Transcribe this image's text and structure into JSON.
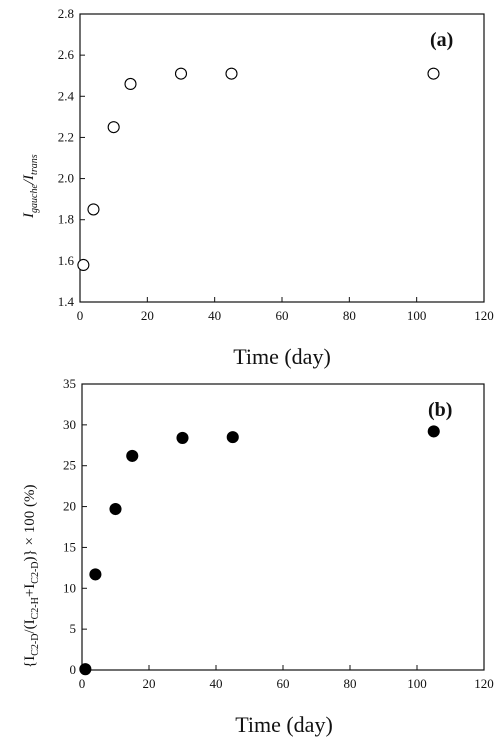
{
  "chart_data": [
    {
      "type": "scatter",
      "panel_label": "(a)",
      "xlabel": "Time (day)",
      "ylabel": {
        "main_1": "I",
        "sub_1": "gauche",
        "main_2": "/I",
        "sub_2": "trans"
      },
      "xlim": [
        0,
        120
      ],
      "ylim": [
        1.4,
        2.8
      ],
      "xticks": [
        "0",
        "20",
        "40",
        "60",
        "80",
        "100",
        "120"
      ],
      "yticks": [
        "1.4",
        "1.6",
        "1.8",
        "2.0",
        "2.2",
        "2.4",
        "2.6",
        "2.8"
      ],
      "marker": "open-circle",
      "grid": false,
      "x": [
        1,
        4,
        10,
        15,
        30,
        45,
        105
      ],
      "y": [
        1.58,
        1.85,
        2.25,
        2.46,
        2.51,
        2.51,
        2.51
      ]
    },
    {
      "type": "scatter",
      "panel_label": "(b)",
      "xlabel": "Time (day)",
      "ylabel": {
        "p1": "{I",
        "s1": "C2-D",
        "p2": "/(I",
        "s2": "C2-H",
        "p3": "+I",
        "s3": "C2-D",
        "p4": ")} × 100 (%)"
      },
      "xlim": [
        0,
        120
      ],
      "ylim": [
        0,
        35
      ],
      "xticks": [
        "0",
        "20",
        "40",
        "60",
        "80",
        "100",
        "120"
      ],
      "yticks": [
        "0",
        "5",
        "10",
        "15",
        "20",
        "25",
        "30",
        "35"
      ],
      "marker": "filled-circle",
      "grid": false,
      "x": [
        1,
        4,
        10,
        15,
        30,
        45,
        105
      ],
      "y": [
        0.1,
        11.7,
        19.7,
        26.2,
        28.4,
        28.5,
        29.2
      ]
    }
  ]
}
